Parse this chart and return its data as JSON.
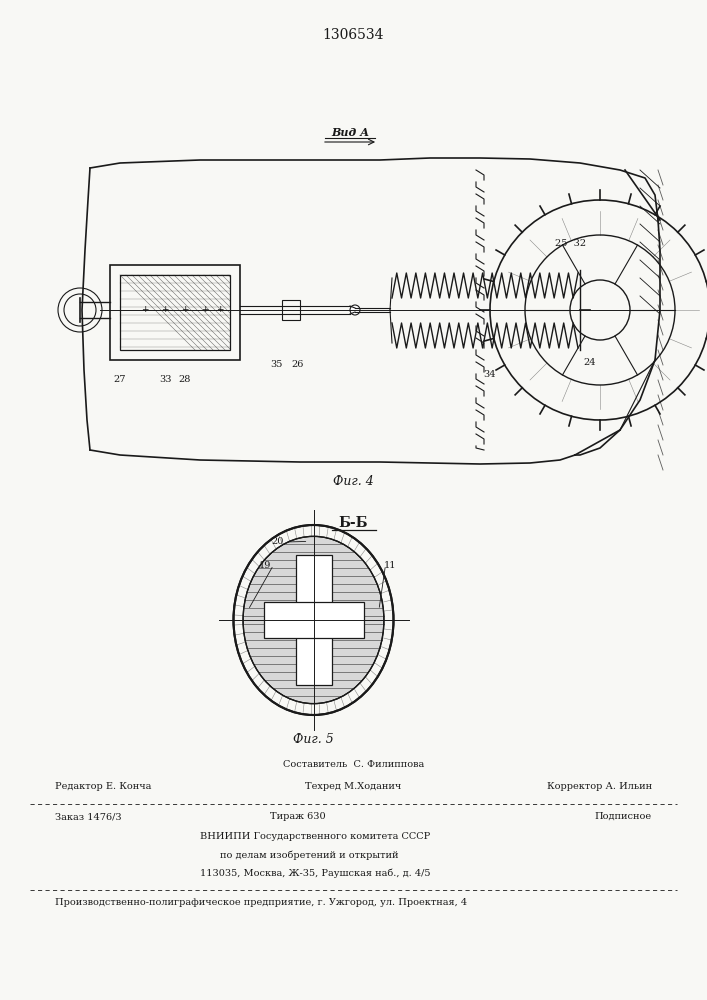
{
  "patent_number": "1306534",
  "bg_color": "#f8f8f5",
  "line_color": "#1a1a1a",
  "fig4_label": "Фиг. 4",
  "fig5_label": "Фиг. 5",
  "view_label": "Вид А",
  "section_label": "Б-Б"
}
